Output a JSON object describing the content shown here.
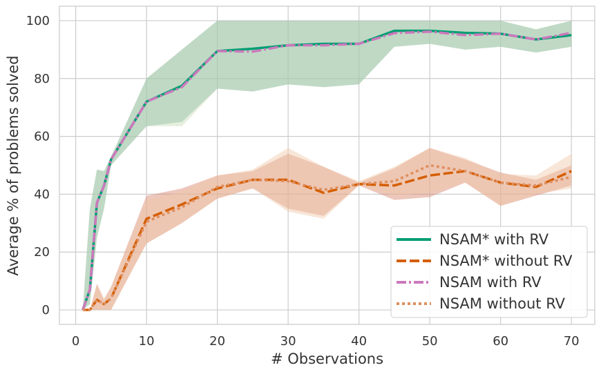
{
  "chart_data": {
    "type": "line",
    "title": "",
    "xlabel": "# Observations",
    "ylabel": "Average % of problems solved",
    "xlim": [
      -2.3,
      73.3
    ],
    "ylim": [
      -5,
      105
    ],
    "xticks": [
      0,
      10,
      20,
      30,
      40,
      50,
      60,
      70
    ],
    "yticks": [
      0,
      20,
      40,
      60,
      80,
      100
    ],
    "xtick_labels": [
      "0",
      "10",
      "20",
      "30",
      "40",
      "50",
      "60",
      "70"
    ],
    "ytick_labels": [
      "0",
      "20",
      "40",
      "60",
      "80",
      "100"
    ],
    "grid": true,
    "legend_position": "lower-right",
    "x": [
      1,
      2,
      3,
      4,
      5,
      10,
      15,
      20,
      25,
      30,
      35,
      40,
      45,
      50,
      55,
      60,
      65,
      70
    ],
    "series": [
      {
        "name": "NSAM* with RV",
        "color": "#029e73",
        "dash": "solid",
        "values": [
          0,
          7,
          37,
          43,
          52,
          72,
          77.5,
          89.5,
          90.3,
          91.5,
          92,
          92,
          96.5,
          96.5,
          95.8,
          95.5,
          93.5,
          95
        ],
        "band_low": [
          0,
          2,
          25,
          35,
          50,
          63.5,
          65,
          76.5,
          75.5,
          78,
          77,
          78,
          91,
          92,
          90,
          91,
          89,
          91
        ],
        "band_high": [
          0,
          35,
          48.5,
          48,
          53,
          80,
          90,
          100,
          100,
          100,
          100,
          100,
          100,
          100,
          100,
          100,
          97,
          100
        ],
        "band_color": "#69a89f"
      },
      {
        "name": "NSAM* without RV",
        "color": "#d55e00",
        "dash": "dashed",
        "values": [
          0,
          0,
          3.5,
          2,
          4,
          31.5,
          36.5,
          42,
          45,
          45,
          40.5,
          43.5,
          43,
          46.5,
          48,
          44,
          42.5,
          48
        ],
        "band_low": [
          0,
          0,
          0,
          0,
          0,
          23,
          30,
          38.5,
          42,
          35,
          32.5,
          43,
          38,
          39,
          44,
          36,
          39.5,
          43
        ],
        "band_high": [
          0,
          0,
          9,
          3.5,
          8,
          39.5,
          42,
          46.5,
          48,
          54,
          49.5,
          44,
          49,
          56,
          52,
          47.5,
          45,
          50
        ],
        "band_color": "#d8826b"
      },
      {
        "name": "NSAM with RV",
        "color": "#cc78bc",
        "dash": "dashdot",
        "values": [
          0,
          7,
          37,
          43,
          52,
          72,
          77,
          89.5,
          89.3,
          91.5,
          91.5,
          92,
          95.7,
          96.2,
          95,
          95.5,
          93.5,
          95.8
        ],
        "band_low": [
          0,
          2,
          25,
          35,
          50,
          63.5,
          63.5,
          76.5,
          75.5,
          78,
          77,
          78,
          91,
          92,
          90,
          91,
          89,
          91
        ],
        "band_high": [
          0,
          35,
          48.5,
          48,
          53,
          80,
          90,
          100,
          100,
          100,
          100,
          100,
          100,
          100,
          100,
          100,
          97,
          100
        ],
        "band_color": "#c8dbb4"
      },
      {
        "name": "NSAM without RV",
        "color": "#de8f5f",
        "dash": "dotted",
        "values": [
          0,
          0,
          3.5,
          2,
          4,
          30.5,
          35.5,
          42.5,
          45,
          44.5,
          41.5,
          43.5,
          44.5,
          50,
          48,
          44,
          43,
          46
        ],
        "band_low": [
          0,
          0,
          0,
          0,
          0,
          23,
          30,
          38.5,
          42,
          34,
          31.5,
          43,
          39.5,
          40.5,
          44,
          36,
          40,
          42
        ],
        "band_high": [
          0,
          0,
          9,
          4,
          8,
          38,
          41,
          46.5,
          48.5,
          56,
          49.5,
          44.5,
          49.5,
          56,
          52.5,
          47,
          46.5,
          54
        ],
        "band_color": "#f0c8a8"
      }
    ]
  }
}
